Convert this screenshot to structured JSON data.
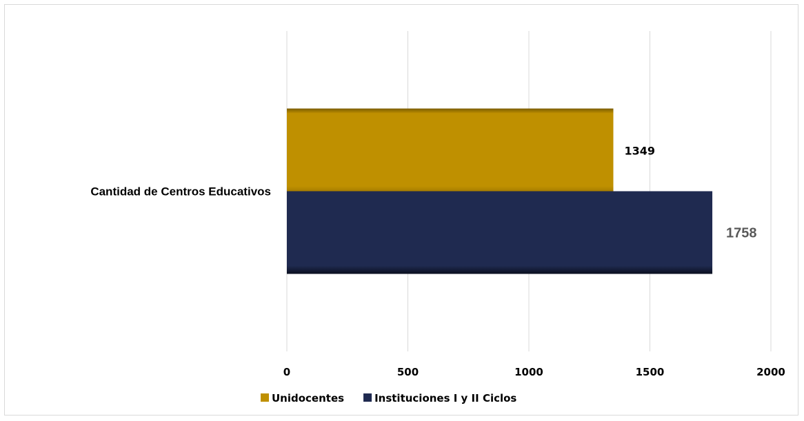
{
  "chart_data": {
    "type": "bar",
    "orientation": "horizontal",
    "categories": [
      "Cantidad de Centros Educativos"
    ],
    "series": [
      {
        "name": "Unidocentes",
        "values": [
          1349
        ],
        "color": "#bf9000",
        "label_color": "#000000"
      },
      {
        "name": "Instituciones I y II Ciclos",
        "values": [
          1758
        ],
        "color": "#1f2a50",
        "label_color": "#595959"
      }
    ],
    "xlim": [
      0,
      2000
    ],
    "xticks": [
      0,
      500,
      1000,
      1500,
      2000
    ],
    "grid": "vertical",
    "legend_position": "bottom"
  }
}
